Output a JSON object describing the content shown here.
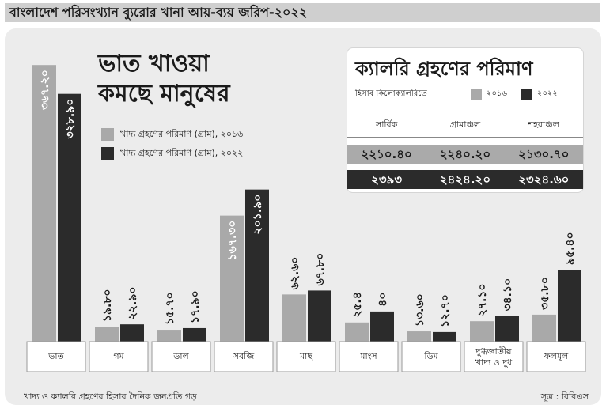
{
  "header": "বাংলাদেশ পরিসংখ্যান ব্যুরোর খানা আয়-ব্যয় জরিপ-২০২২",
  "main_title": [
    "ভাত খাওয়া",
    "কমছে মানুষের"
  ],
  "legend": {
    "2016": "খাদ্য গ্রহণের পরিমাণ (গ্রাম), ২০১৬",
    "2022": "খাদ্য গ্রহণের পরিমাণ (গ্রাম), ২০২২"
  },
  "colors": {
    "2016": "#a9a9a9",
    "2022": "#2b2b2b"
  },
  "calorie_box": {
    "title": "ক্যালরি গ্রহণের পরিমাণ",
    "subtitle": "হিসাব কিলোক্যালরিতে",
    "legend_2016": "২০১৬",
    "legend_2022": "২০২২",
    "columns": [
      "সার্বিক",
      "গ্রামাঞ্চল",
      "শহরাঞ্চল"
    ],
    "values_2016": [
      "২২১০.৪০",
      "২২৪০.২০",
      "২১৩০.৭০"
    ],
    "values_2022": [
      "২৩৯৩",
      "২৪২৪.২০",
      "২৩২৪.৬০"
    ]
  },
  "chart_data": {
    "type": "bar",
    "categories": [
      "ভাত",
      "গম",
      "ডাল",
      "সবজি",
      "মাছ",
      "মাংস",
      "ডিম",
      "দুগ্ধজাতীয় খাদ্য ও দুধ",
      "ফলমূল"
    ],
    "series": [
      {
        "name": "খাদ্য গ্রহণের পরিমাণ (গ্রাম), ২০১৬",
        "values": [
          367.2,
          19.8,
          15.7,
          167.3,
          62.6,
          25.4,
          13.6,
          27.1,
          35.8
        ],
        "labels": [
          "৩৬৭.২০",
          "১৯.৮০",
          "১৫.৭০",
          "১৬৭.৩০",
          "৬২.৬০",
          "২৫.৪",
          "১৩.৬০",
          "২৭.১০",
          "৩৫.৮০"
        ]
      },
      {
        "name": "খাদ্য গ্রহণের পরিমাণ (গ্রাম), ২০২২",
        "values": [
          328.9,
          22.9,
          17.9,
          201.9,
          67.8,
          40,
          12.7,
          34.1,
          95.4
        ],
        "labels": [
          "৩২৮.৯০",
          "২২.৯০",
          "১৭.৯০",
          "২০১.৯০",
          "৬৭.৮০",
          "৪০",
          "১২.৭০",
          "৩৪.১০",
          "৯৫.৪০"
        ]
      }
    ],
    "ylim": [
      0,
      380
    ],
    "grid": false
  },
  "footer": {
    "note": "খাদ্য ও ক্যালরি গ্রহণের হিসাব দৈনিক জনপ্রতি গড়",
    "source": "সূত্র : বিবিএস"
  }
}
